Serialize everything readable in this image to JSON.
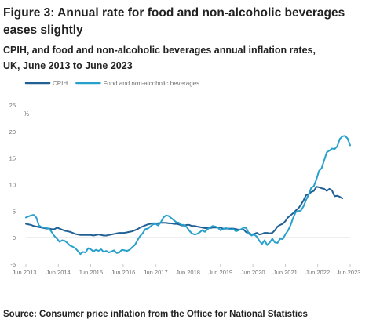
{
  "title": "Figure 3: Annual rate for food and non-alcoholic beverages eases slightly",
  "subtitle": "CPIH, and food and non-alcoholic beverages annual inflation rates, UK, June 2013 to June 2023",
  "source": "Source: Consumer price inflation from the Office for National Statistics",
  "colors": {
    "cpih": "#206095",
    "food": "#27A0CC",
    "zero_line": "#bdbdbd",
    "tick_text": "#707070"
  },
  "chart_data": {
    "type": "line",
    "xlabel": "",
    "ylabel": "",
    "unit_label": "%",
    "ylim": [
      -5,
      25
    ],
    "y_ticks": [
      25,
      20,
      15,
      10,
      5,
      0,
      -5
    ],
    "x_tick_labels": [
      "Jun 2013",
      "Jun 2014",
      "Jun 2015",
      "Jun 2016",
      "Jun 2017",
      "Jun 2018",
      "Jun 2019",
      "Jun 2020",
      "Jun 2021",
      "Jun 2022",
      "Jun 2023"
    ],
    "x_start": "Jun 2013",
    "x_end": "Jun 2023",
    "legend_position": "top-left",
    "grid": false,
    "series": [
      {
        "name": "CPIH",
        "color": "#206095",
        "values": [
          2.6,
          2.5,
          2.4,
          2.2,
          2.1,
          2.0,
          1.9,
          1.8,
          1.7,
          1.7,
          1.6,
          1.6,
          1.9,
          1.7,
          1.5,
          1.3,
          1.2,
          1.1,
          0.9,
          0.7,
          0.6,
          0.5,
          0.5,
          0.5,
          0.5,
          0.5,
          0.4,
          0.5,
          0.6,
          0.5,
          0.4,
          0.4,
          0.5,
          0.6,
          0.7,
          0.8,
          0.9,
          0.9,
          0.9,
          1.0,
          1.1,
          1.2,
          1.4,
          1.6,
          1.9,
          2.1,
          2.3,
          2.5,
          2.6,
          2.7,
          2.7,
          2.7,
          2.8,
          2.8,
          2.8,
          2.7,
          2.7,
          2.6,
          2.6,
          2.5,
          2.3,
          2.3,
          2.4,
          2.4,
          2.2,
          2.2,
          2.1,
          2.0,
          1.9,
          1.8,
          1.8,
          1.8,
          1.9,
          1.9,
          1.9,
          1.9,
          1.7,
          1.7,
          1.7,
          1.7,
          1.7,
          1.6,
          1.5,
          1.5,
          1.5,
          1.0,
          0.9,
          0.6,
          0.7,
          0.9,
          0.6,
          0.7,
          0.9,
          0.9,
          0.8,
          0.9,
          1.4,
          2.1,
          2.4,
          2.6,
          3.1,
          3.8,
          4.2,
          4.6,
          5.1,
          5.5,
          6.2,
          7.0,
          8.0,
          8.2,
          8.6,
          8.8,
          9.6,
          9.5,
          9.3,
          9.2,
          8.8,
          9.2,
          8.9,
          7.8,
          7.9,
          7.7,
          7.4
        ]
      },
      {
        "name": "Food and non-alcoholic beverages",
        "color": "#27A0CC",
        "values": [
          3.8,
          4.0,
          4.2,
          4.3,
          3.8,
          2.3,
          2.0,
          1.9,
          1.8,
          1.7,
          1.0,
          0.3,
          -0.2,
          -0.8,
          -0.5,
          -0.6,
          -1.0,
          -1.5,
          -1.7,
          -2.0,
          -2.5,
          -3.1,
          -2.7,
          -2.8,
          -2.0,
          -2.2,
          -2.6,
          -2.3,
          -2.5,
          -2.2,
          -2.7,
          -2.5,
          -2.8,
          -2.6,
          -2.4,
          -2.9,
          -2.8,
          -2.3,
          -2.4,
          -2.5,
          -2.3,
          -1.8,
          -1.4,
          -0.5,
          0.3,
          0.8,
          1.6,
          1.7,
          2.1,
          2.5,
          2.6,
          2.3,
          2.9,
          3.8,
          4.2,
          4.1,
          3.7,
          3.3,
          2.9,
          2.8,
          2.4,
          2.4,
          2.0,
          1.3,
          0.8,
          0.6,
          0.7,
          1.0,
          1.4,
          1.1,
          1.6,
          1.9,
          2.2,
          2.1,
          1.9,
          1.4,
          1.6,
          1.8,
          1.7,
          1.5,
          1.6,
          1.2,
          1.4,
          1.6,
          1.9,
          1.8,
          0.7,
          0.4,
          0.6,
          0.2,
          -0.6,
          -1.2,
          -0.5,
          -1.4,
          -0.9,
          -0.2,
          -0.9,
          -1.0,
          -0.2,
          -0.3,
          0.6,
          1.3,
          2.3,
          3.7,
          4.8,
          5.0,
          5.1,
          5.9,
          7.1,
          8.1,
          9.4,
          9.7,
          11.0,
          12.6,
          13.1,
          14.6,
          16.1,
          16.4,
          16.8,
          16.7,
          17.2,
          18.6,
          19.1,
          19.2,
          18.7,
          17.4
        ]
      }
    ]
  }
}
